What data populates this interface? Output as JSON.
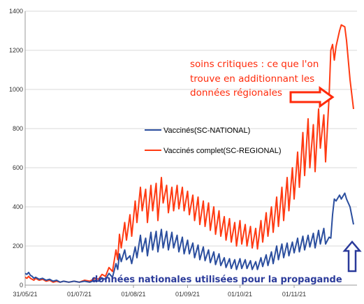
{
  "chart_data": {
    "type": "line",
    "x_ticks": [
      "31/05/21",
      "01/07/21",
      "01/08/21",
      "01/09/21",
      "01/10/21",
      "01/11/21"
    ],
    "y_ticks": [
      0,
      200,
      400,
      600,
      800,
      1000,
      1200,
      1400
    ],
    "ylim": [
      0,
      1400
    ],
    "xlim": [
      "2021-05-31",
      "2021-12-07"
    ],
    "grid": "horizontal",
    "legend_position": "center-right",
    "series": [
      {
        "name": "Vaccinés(SC-NATIONAL)",
        "color": "#2b4e9e",
        "points": [
          [
            "2021-05-31",
            60
          ],
          [
            "2021-06-01",
            55
          ],
          [
            "2021-06-02",
            65
          ],
          [
            "2021-06-03",
            50
          ],
          [
            "2021-06-04",
            45
          ],
          [
            "2021-06-05",
            35
          ],
          [
            "2021-06-06",
            40
          ],
          [
            "2021-06-08",
            30
          ],
          [
            "2021-06-10",
            35
          ],
          [
            "2021-06-12",
            25
          ],
          [
            "2021-06-14",
            30
          ],
          [
            "2021-06-16",
            20
          ],
          [
            "2021-06-18",
            25
          ],
          [
            "2021-06-20",
            15
          ],
          [
            "2021-06-22",
            20
          ],
          [
            "2021-06-25",
            15
          ],
          [
            "2021-06-28",
            20
          ],
          [
            "2021-07-01",
            15
          ],
          [
            "2021-07-04",
            20
          ],
          [
            "2021-07-07",
            15
          ],
          [
            "2021-07-10",
            25
          ],
          [
            "2021-07-12",
            20
          ],
          [
            "2021-07-14",
            35
          ],
          [
            "2021-07-16",
            30
          ],
          [
            "2021-07-18",
            60
          ],
          [
            "2021-07-20",
            40
          ],
          [
            "2021-07-22",
            110
          ],
          [
            "2021-07-23",
            80
          ],
          [
            "2021-07-24",
            160
          ],
          [
            "2021-07-25",
            120
          ],
          [
            "2021-07-27",
            180
          ],
          [
            "2021-07-28",
            130
          ],
          [
            "2021-07-30",
            150
          ],
          [
            "2021-07-31",
            110
          ],
          [
            "2021-08-02",
            195
          ],
          [
            "2021-08-03",
            140
          ],
          [
            "2021-08-05",
            255
          ],
          [
            "2021-08-06",
            170
          ],
          [
            "2021-08-08",
            240
          ],
          [
            "2021-08-09",
            150
          ],
          [
            "2021-08-11",
            270
          ],
          [
            "2021-08-12",
            180
          ],
          [
            "2021-08-14",
            275
          ],
          [
            "2021-08-15",
            170
          ],
          [
            "2021-08-17",
            285
          ],
          [
            "2021-08-18",
            190
          ],
          [
            "2021-08-20",
            275
          ],
          [
            "2021-08-21",
            180
          ],
          [
            "2021-08-23",
            270
          ],
          [
            "2021-08-24",
            190
          ],
          [
            "2021-08-26",
            255
          ],
          [
            "2021-08-27",
            170
          ],
          [
            "2021-08-29",
            245
          ],
          [
            "2021-08-30",
            160
          ],
          [
            "2021-09-01",
            230
          ],
          [
            "2021-09-02",
            160
          ],
          [
            "2021-09-04",
            215
          ],
          [
            "2021-09-05",
            140
          ],
          [
            "2021-09-07",
            205
          ],
          [
            "2021-09-08",
            130
          ],
          [
            "2021-09-10",
            195
          ],
          [
            "2021-09-11",
            125
          ],
          [
            "2021-09-13",
            180
          ],
          [
            "2021-09-14",
            115
          ],
          [
            "2021-09-16",
            170
          ],
          [
            "2021-09-17",
            105
          ],
          [
            "2021-09-19",
            160
          ],
          [
            "2021-09-20",
            100
          ],
          [
            "2021-09-22",
            140
          ],
          [
            "2021-09-23",
            90
          ],
          [
            "2021-09-25",
            135
          ],
          [
            "2021-09-26",
            85
          ],
          [
            "2021-09-28",
            130
          ],
          [
            "2021-09-29",
            80
          ],
          [
            "2021-10-01",
            135
          ],
          [
            "2021-10-02",
            85
          ],
          [
            "2021-10-04",
            130
          ],
          [
            "2021-10-05",
            85
          ],
          [
            "2021-10-07",
            125
          ],
          [
            "2021-10-08",
            80
          ],
          [
            "2021-10-10",
            120
          ],
          [
            "2021-10-11",
            80
          ],
          [
            "2021-10-13",
            140
          ],
          [
            "2021-10-14",
            95
          ],
          [
            "2021-10-16",
            155
          ],
          [
            "2021-10-17",
            100
          ],
          [
            "2021-10-19",
            170
          ],
          [
            "2021-10-20",
            110
          ],
          [
            "2021-10-22",
            200
          ],
          [
            "2021-10-23",
            130
          ],
          [
            "2021-10-25",
            210
          ],
          [
            "2021-10-26",
            140
          ],
          [
            "2021-10-28",
            215
          ],
          [
            "2021-10-29",
            150
          ],
          [
            "2021-10-31",
            220
          ],
          [
            "2021-11-01",
            165
          ],
          [
            "2021-11-03",
            240
          ],
          [
            "2021-11-04",
            170
          ],
          [
            "2021-11-06",
            250
          ],
          [
            "2021-11-07",
            180
          ],
          [
            "2021-11-09",
            255
          ],
          [
            "2021-11-10",
            195
          ],
          [
            "2021-11-12",
            265
          ],
          [
            "2021-11-13",
            190
          ],
          [
            "2021-11-15",
            280
          ],
          [
            "2021-11-16",
            210
          ],
          [
            "2021-11-18",
            290
          ],
          [
            "2021-11-19",
            210
          ],
          [
            "2021-11-21",
            245
          ],
          [
            "2021-11-22",
            240
          ],
          [
            "2021-11-23",
            360
          ],
          [
            "2021-11-24",
            440
          ],
          [
            "2021-11-25",
            430
          ],
          [
            "2021-11-27",
            460
          ],
          [
            "2021-11-28",
            440
          ],
          [
            "2021-11-30",
            470
          ],
          [
            "2021-12-01",
            440
          ],
          [
            "2021-12-03",
            400
          ],
          [
            "2021-12-05",
            310
          ]
        ]
      },
      {
        "name": "Vaccinés complet(SC-REGIONAL)",
        "color": "#ff3a12",
        "points": [
          [
            "2021-05-31",
            40
          ],
          [
            "2021-06-01",
            35
          ],
          [
            "2021-06-02",
            45
          ],
          [
            "2021-06-03",
            35
          ],
          [
            "2021-06-04",
            30
          ],
          [
            "2021-06-05",
            25
          ],
          [
            "2021-06-06",
            35
          ],
          [
            "2021-06-08",
            25
          ],
          [
            "2021-06-10",
            30
          ],
          [
            "2021-06-12",
            20
          ],
          [
            "2021-06-14",
            25
          ],
          [
            "2021-06-16",
            15
          ],
          [
            "2021-06-18",
            20
          ],
          [
            "2021-06-20",
            15
          ],
          [
            "2021-06-22",
            20
          ],
          [
            "2021-06-25",
            15
          ],
          [
            "2021-06-28",
            20
          ],
          [
            "2021-07-01",
            15
          ],
          [
            "2021-07-04",
            25
          ],
          [
            "2021-07-07",
            20
          ],
          [
            "2021-07-10",
            35
          ],
          [
            "2021-07-12",
            30
          ],
          [
            "2021-07-14",
            55
          ],
          [
            "2021-07-16",
            45
          ],
          [
            "2021-07-18",
            90
          ],
          [
            "2021-07-20",
            70
          ],
          [
            "2021-07-22",
            180
          ],
          [
            "2021-07-23",
            130
          ],
          [
            "2021-07-24",
            260
          ],
          [
            "2021-07-25",
            190
          ],
          [
            "2021-07-27",
            320
          ],
          [
            "2021-07-28",
            230
          ],
          [
            "2021-07-30",
            360
          ],
          [
            "2021-07-31",
            250
          ],
          [
            "2021-08-02",
            430
          ],
          [
            "2021-08-03",
            320
          ],
          [
            "2021-08-05",
            500
          ],
          [
            "2021-08-06",
            380
          ],
          [
            "2021-08-08",
            490
          ],
          [
            "2021-08-09",
            320
          ],
          [
            "2021-08-11",
            510
          ],
          [
            "2021-08-12",
            380
          ],
          [
            "2021-08-14",
            520
          ],
          [
            "2021-08-15",
            330
          ],
          [
            "2021-08-17",
            550
          ],
          [
            "2021-08-18",
            420
          ],
          [
            "2021-08-20",
            510
          ],
          [
            "2021-08-21",
            370
          ],
          [
            "2021-08-23",
            500
          ],
          [
            "2021-08-24",
            380
          ],
          [
            "2021-08-26",
            510
          ],
          [
            "2021-08-27",
            390
          ],
          [
            "2021-08-29",
            500
          ],
          [
            "2021-08-30",
            380
          ],
          [
            "2021-09-01",
            480
          ],
          [
            "2021-09-02",
            360
          ],
          [
            "2021-09-04",
            460
          ],
          [
            "2021-09-05",
            330
          ],
          [
            "2021-09-07",
            450
          ],
          [
            "2021-09-08",
            310
          ],
          [
            "2021-09-10",
            430
          ],
          [
            "2021-09-11",
            300
          ],
          [
            "2021-09-13",
            420
          ],
          [
            "2021-09-14",
            280
          ],
          [
            "2021-09-16",
            400
          ],
          [
            "2021-09-17",
            260
          ],
          [
            "2021-09-19",
            380
          ],
          [
            "2021-09-20",
            250
          ],
          [
            "2021-09-22",
            350
          ],
          [
            "2021-09-23",
            230
          ],
          [
            "2021-09-25",
            340
          ],
          [
            "2021-09-26",
            220
          ],
          [
            "2021-09-28",
            320
          ],
          [
            "2021-09-29",
            200
          ],
          [
            "2021-10-01",
            330
          ],
          [
            "2021-10-02",
            210
          ],
          [
            "2021-10-04",
            310
          ],
          [
            "2021-10-05",
            200
          ],
          [
            "2021-10-07",
            300
          ],
          [
            "2021-10-08",
            190
          ],
          [
            "2021-10-10",
            290
          ],
          [
            "2021-10-11",
            185
          ],
          [
            "2021-10-13",
            330
          ],
          [
            "2021-10-14",
            220
          ],
          [
            "2021-10-16",
            370
          ],
          [
            "2021-10-17",
            250
          ],
          [
            "2021-10-19",
            400
          ],
          [
            "2021-10-20",
            270
          ],
          [
            "2021-10-22",
            450
          ],
          [
            "2021-10-23",
            300
          ],
          [
            "2021-10-25",
            500
          ],
          [
            "2021-10-26",
            330
          ],
          [
            "2021-10-28",
            550
          ],
          [
            "2021-10-29",
            380
          ],
          [
            "2021-10-31",
            600
          ],
          [
            "2021-11-01",
            440
          ],
          [
            "2021-11-03",
            680
          ],
          [
            "2021-11-04",
            500
          ],
          [
            "2021-11-06",
            780
          ],
          [
            "2021-11-07",
            560
          ],
          [
            "2021-11-09",
            850
          ],
          [
            "2021-11-10",
            600
          ],
          [
            "2021-11-12",
            820
          ],
          [
            "2021-11-13",
            580
          ],
          [
            "2021-11-15",
            900
          ],
          [
            "2021-11-16",
            700
          ],
          [
            "2021-11-18",
            870
          ],
          [
            "2021-11-19",
            630
          ],
          [
            "2021-11-21",
            960
          ],
          [
            "2021-11-22",
            1200
          ],
          [
            "2021-11-23",
            1230
          ],
          [
            "2021-11-24",
            1150
          ],
          [
            "2021-11-25",
            1220
          ],
          [
            "2021-11-27",
            1300
          ],
          [
            "2021-11-28",
            1330
          ],
          [
            "2021-11-30",
            1320
          ],
          [
            "2021-12-01",
            1250
          ],
          [
            "2021-12-03",
            1050
          ],
          [
            "2021-12-05",
            900
          ]
        ]
      }
    ],
    "annotations": {
      "red_text_lines": [
        "soins critiques : ce que l'on",
        "trouve en additionnant les",
        "données régionales"
      ],
      "blue_text": "données nationales utilisées pour la propagande",
      "red_arrow_color": "#ff2a0a",
      "blue_arrow_color": "#2a3a9a"
    }
  }
}
